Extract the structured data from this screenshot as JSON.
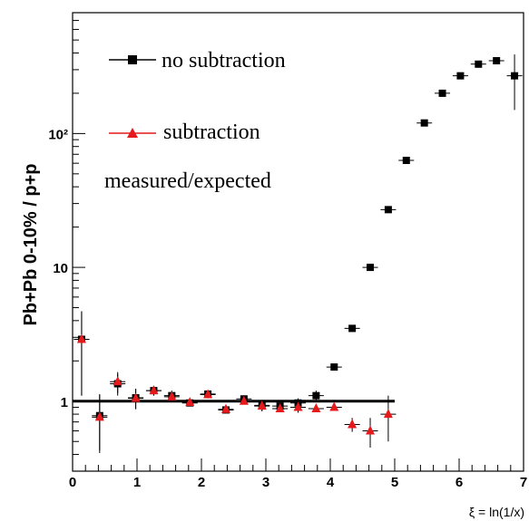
{
  "chart_data": {
    "type": "scatter",
    "ylabel": "Pb+Pb 0-10% / p+p",
    "xlabel": "ξ = ln(1/x)",
    "xlim": [
      0,
      7
    ],
    "ylim": [
      0.3,
      800
    ],
    "yscale": "log",
    "x_ticks": [
      0,
      1,
      2,
      3,
      4,
      5,
      6,
      7
    ],
    "y_ticks": [
      {
        "value": 1,
        "label": "1"
      },
      {
        "value": 10,
        "label": "10"
      },
      {
        "value": 100,
        "label": "10²"
      }
    ],
    "annotation": "measured/expected",
    "reference_line": {
      "y": 1,
      "x_range": [
        0,
        5
      ]
    },
    "series": [
      {
        "name": "no subtraction",
        "marker": "square",
        "color": "#000000",
        "x": [
          0.14,
          0.42,
          0.7,
          0.98,
          1.26,
          1.54,
          1.82,
          2.1,
          2.38,
          2.66,
          2.94,
          3.22,
          3.5,
          3.78,
          4.06,
          4.34,
          4.62,
          4.9,
          5.18,
          5.46,
          5.74,
          6.02,
          6.3,
          6.58,
          6.86
        ],
        "y": [
          2.9,
          0.78,
          1.35,
          1.06,
          1.2,
          1.1,
          0.97,
          1.13,
          0.86,
          1.04,
          0.93,
          0.92,
          0.97,
          1.1,
          1.8,
          3.5,
          10,
          27,
          63,
          120,
          200,
          270,
          330,
          350,
          270
        ]
      },
      {
        "name": "subtraction",
        "marker": "triangle",
        "color": "#e41a1c",
        "x": [
          0.14,
          0.42,
          0.7,
          0.98,
          1.26,
          1.54,
          1.82,
          2.1,
          2.38,
          2.66,
          2.94,
          3.22,
          3.5,
          3.78,
          4.06,
          4.34,
          4.62,
          4.9
        ],
        "y": [
          2.9,
          0.76,
          1.4,
          1.05,
          1.2,
          1.08,
          0.98,
          1.12,
          0.87,
          1.0,
          0.92,
          0.88,
          0.9,
          0.88,
          0.9,
          0.67,
          0.6,
          0.8
        ]
      }
    ],
    "errors": {
      "no subtraction": [
        1.8,
        0.35,
        0.25,
        0.18,
        0.1,
        0.1,
        0.05,
        0.07,
        0.05,
        0.05,
        0.08,
        0.05,
        0.08,
        0.1,
        0.1,
        0.2,
        0.4,
        1,
        3,
        6,
        10,
        12,
        18,
        20,
        120
      ],
      "subtraction": [
        1.8,
        0.35,
        0.25,
        0.18,
        0.1,
        0.1,
        0.05,
        0.07,
        0.05,
        0.05,
        0.08,
        0.05,
        0.08,
        0.05,
        0.05,
        0.08,
        0.15,
        0.3
      ]
    }
  },
  "colors": {
    "no_subtraction": "#000000",
    "subtraction": "#e41a1c",
    "subtraction_fill": "#e41a1c"
  }
}
